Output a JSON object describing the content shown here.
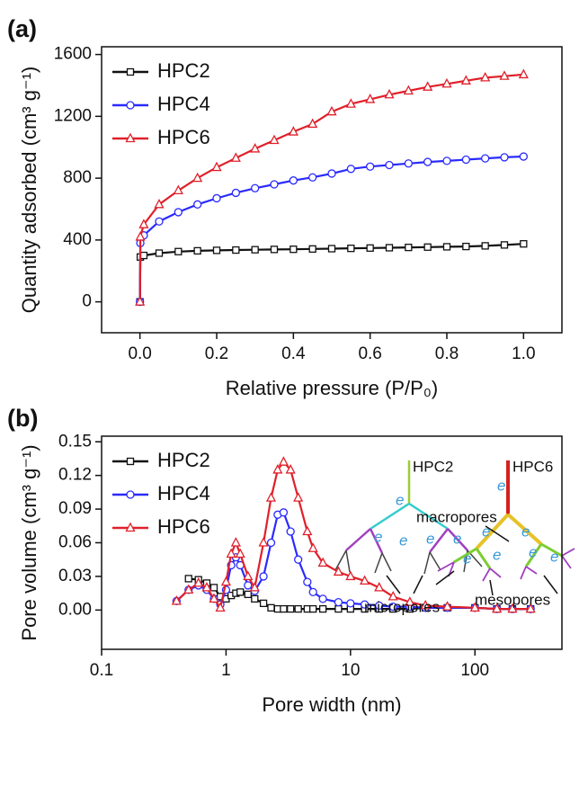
{
  "chart_data": [
    {
      "type": "line",
      "panel": "(a)",
      "xlabel": "Relative pressure (P/P₀)",
      "ylabel": "Quantity adsorbed (cm³ g⁻¹)",
      "x": [
        0,
        0.001,
        0.01,
        0.05,
        0.1,
        0.15,
        0.2,
        0.25,
        0.3,
        0.35,
        0.4,
        0.45,
        0.5,
        0.55,
        0.6,
        0.65,
        0.7,
        0.75,
        0.8,
        0.85,
        0.9,
        0.95,
        1.0
      ],
      "series": [
        {
          "name": "HPC2",
          "color": "#111111",
          "marker": "square",
          "values": [
            0,
            290,
            300,
            315,
            325,
            330,
            333,
            335,
            337,
            339,
            340,
            342,
            344,
            346,
            348,
            350,
            352,
            354,
            356,
            358,
            362,
            368,
            375
          ]
        },
        {
          "name": "HPC4",
          "color": "#2a2aff",
          "marker": "circle",
          "values": [
            0,
            380,
            430,
            520,
            580,
            630,
            670,
            705,
            735,
            760,
            785,
            805,
            830,
            860,
            875,
            885,
            895,
            905,
            912,
            920,
            928,
            935,
            940
          ]
        },
        {
          "name": "HPC6",
          "color": "#e0202a",
          "marker": "triangle",
          "values": [
            0,
            420,
            500,
            630,
            720,
            800,
            870,
            930,
            990,
            1045,
            1100,
            1150,
            1230,
            1280,
            1310,
            1340,
            1365,
            1390,
            1410,
            1430,
            1450,
            1460,
            1470
          ]
        }
      ],
      "xlim": [
        -0.1,
        1.1
      ],
      "xticks": [
        {
          "value": 0,
          "label": "0.0"
        },
        0.2,
        0.4,
        0.6,
        0.8,
        {
          "value": 1,
          "label": "1.0"
        }
      ],
      "ylim": [
        -200,
        1650
      ],
      "yticks": [
        0,
        400,
        800,
        1200,
        1600
      ],
      "legend": "upper left"
    },
    {
      "type": "line",
      "panel": "(b)",
      "xscale": "log",
      "xlabel": "Pore width (nm)",
      "ylabel": "Pore volume (cm³ g⁻¹)",
      "x": [
        0.4,
        0.5,
        0.6,
        0.7,
        0.8,
        0.9,
        1.0,
        1.1,
        1.2,
        1.3,
        1.5,
        1.7,
        2.0,
        2.3,
        2.6,
        2.9,
        3.3,
        3.8,
        4.5,
        5,
        6,
        8,
        10,
        13,
        17,
        22,
        30,
        40,
        60,
        100,
        150,
        200,
        280
      ],
      "series": [
        {
          "name": "HPC2",
          "color": "#111111",
          "marker": "square",
          "values": [
            null,
            0.028,
            0.027,
            0.024,
            0.02,
            0.012,
            0.01,
            0.013,
            0.015,
            0.016,
            0.014,
            0.01,
            0.006,
            0.002,
            0.001,
            0.001,
            0.001,
            0.001,
            0.001,
            0.001,
            0.001,
            0.001,
            0.001,
            0.001,
            0.001,
            0.001,
            0.001,
            0.002,
            0.002,
            0.002,
            0.001,
            0.001,
            0.001
          ]
        },
        {
          "name": "HPC4",
          "color": "#2a2aff",
          "marker": "circle",
          "values": [
            0.008,
            0.018,
            0.022,
            0.018,
            0.01,
            0.005,
            0.018,
            0.04,
            0.047,
            0.04,
            0.022,
            0.017,
            0.03,
            0.06,
            0.085,
            0.087,
            0.07,
            0.045,
            0.025,
            0.016,
            0.01,
            0.007,
            0.006,
            0.005,
            0.004,
            0.003,
            0.003,
            0.002,
            0.002,
            0.002,
            0.001,
            0.001,
            0.001
          ]
        },
        {
          "name": "HPC6",
          "color": "#e0202a",
          "marker": "triangle",
          "values": [
            0.008,
            0.018,
            0.024,
            0.02,
            0.01,
            0.002,
            0.025,
            0.05,
            0.06,
            0.05,
            0.03,
            0.02,
            0.06,
            0.1,
            0.125,
            0.132,
            0.125,
            0.1,
            0.07,
            0.055,
            0.042,
            0.034,
            0.03,
            0.026,
            0.02,
            0.012,
            0.007,
            0.004,
            0.003,
            0.002,
            0.001,
            0.001,
            0.001
          ]
        }
      ],
      "xlim": [
        0.1,
        500
      ],
      "xticks": [
        0.1,
        1,
        10,
        100
      ],
      "ylim": [
        -0.035,
        0.155
      ],
      "yticks": [
        {
          "value": 0,
          "label": "0.00"
        },
        0.03,
        0.06,
        0.09,
        0.12,
        0.15
      ],
      "legend": "upper left",
      "inset": {
        "left_tree": "HPC2",
        "right_tree": "HPC6",
        "macro": "macropores",
        "micro": "micropores",
        "meso": "mesopores",
        "electron": "e"
      }
    }
  ]
}
